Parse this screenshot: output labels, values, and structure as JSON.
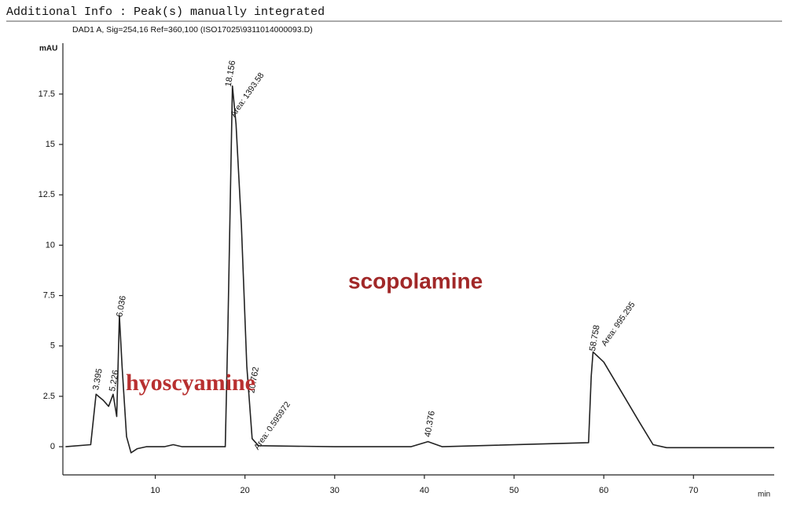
{
  "chart_data": {
    "type": "line",
    "title": "Additional Info : Peak(s) manually integrated",
    "subtitle": "DAD1 A, Sig=254,16 Ref=360,100 (ISO17025\\9311014000093.D)",
    "y_label": "mAU",
    "x_label": "min",
    "x": [
      0,
      2.8,
      3.4,
      4.2,
      4.8,
      5.3,
      5.7,
      6.0,
      6.3,
      6.8,
      7.3,
      8,
      9,
      11,
      12,
      13,
      17.8,
      18.1,
      18.6,
      19.0,
      19.6,
      20.2,
      20.8,
      21.5,
      30,
      38.5,
      40.4,
      42,
      58.3,
      58.6,
      58.8,
      60,
      62,
      64,
      65.5,
      67,
      79
    ],
    "series": [
      {
        "color": "#222222",
        "values": [
          0,
          0.1,
          2.6,
          2.3,
          2.0,
          2.6,
          1.5,
          6.5,
          4,
          0.5,
          -0.3,
          -0.1,
          0,
          0,
          0.1,
          0,
          0,
          6,
          17.9,
          16,
          11,
          4,
          0.4,
          0.05,
          0,
          0,
          0.25,
          0,
          0.2,
          3.5,
          4.7,
          4.2,
          2.7,
          1.2,
          0.1,
          -0.05,
          -0.05
        ]
      }
    ],
    "peaks": [
      3.395,
      5.226,
      6.036,
      18.156,
      20.762,
      40.376,
      58.758
    ],
    "area_labels": [
      "Area: 1393.58",
      "Area: 0.595972",
      "Area: 995.295"
    ],
    "compounds": [
      "hyoscyamine",
      "scopolamine"
    ],
    "xlim": [
      -0.3,
      79
    ],
    "ylim": [
      -1.4,
      21
    ],
    "xticks": [
      10,
      20,
      30,
      40,
      50,
      60,
      70
    ],
    "yticks": [
      0,
      2.5,
      5,
      7.5,
      10,
      12.5,
      15,
      17.5
    ]
  }
}
